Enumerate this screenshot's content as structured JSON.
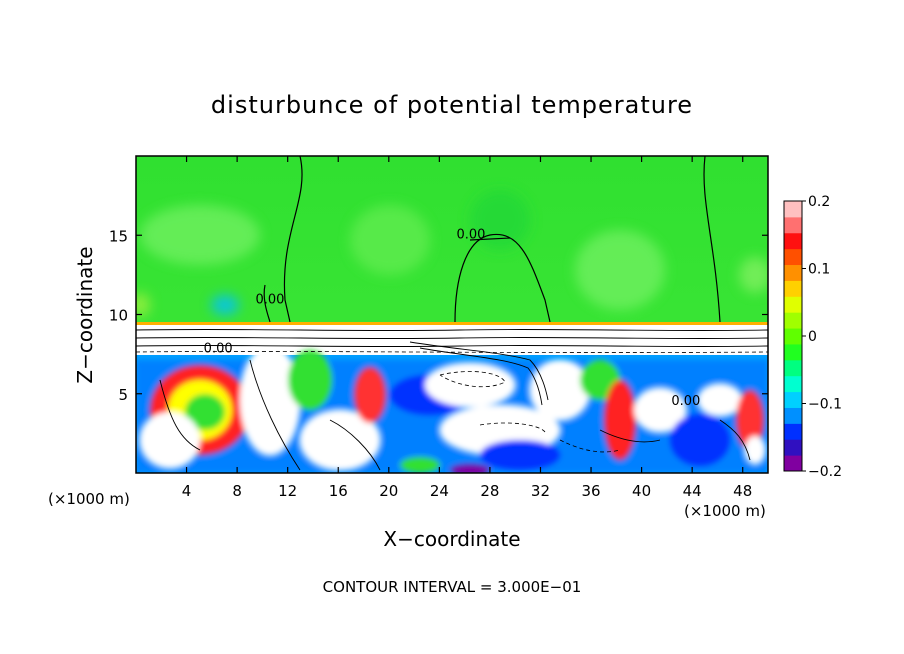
{
  "chart_data": {
    "type": "heatmap",
    "title": "disturbunce of potential temperature",
    "xlabel": "X−coordinate",
    "ylabel": "Z−coordinate",
    "x_unit_left": "(×1000 m)",
    "x_unit_right": "(×1000 m)",
    "xlim": [
      0,
      50
    ],
    "ylim": [
      0,
      20
    ],
    "x_ticks": [
      4,
      8,
      12,
      16,
      20,
      24,
      28,
      32,
      36,
      40,
      44,
      48
    ],
    "y_ticks": [
      5,
      10,
      15
    ],
    "colorbar": {
      "min": -0.2,
      "max": 0.2,
      "tick_labels": [
        "0.2",
        "0.1",
        "0",
        "−0.1",
        "−0.2"
      ],
      "tick_values": [
        0.2,
        0.1,
        0,
        -0.1,
        -0.2
      ],
      "colors": [
        "#8000a0",
        "#3010c0",
        "#0030ff",
        "#0090ff",
        "#00d0ff",
        "#00ffd0",
        "#00ff80",
        "#20ff20",
        "#60ff00",
        "#a0ff00",
        "#e0ff00",
        "#ffd000",
        "#ff9000",
        "#ff5000",
        "#ff1010",
        "#ff7070",
        "#ffc0c0"
      ]
    },
    "contour_labels": [
      {
        "text": "0.00",
        "x": 26.5,
        "z": 14.8
      },
      {
        "text": "0.00",
        "x": 10.6,
        "z": 10.7
      },
      {
        "text": "0.00",
        "x": 6.5,
        "z": 7.6
      },
      {
        "text": "0.00",
        "x": 43.5,
        "z": 4.3
      }
    ],
    "footer": "CONTOUR INTERVAL = 3.000E−01"
  }
}
